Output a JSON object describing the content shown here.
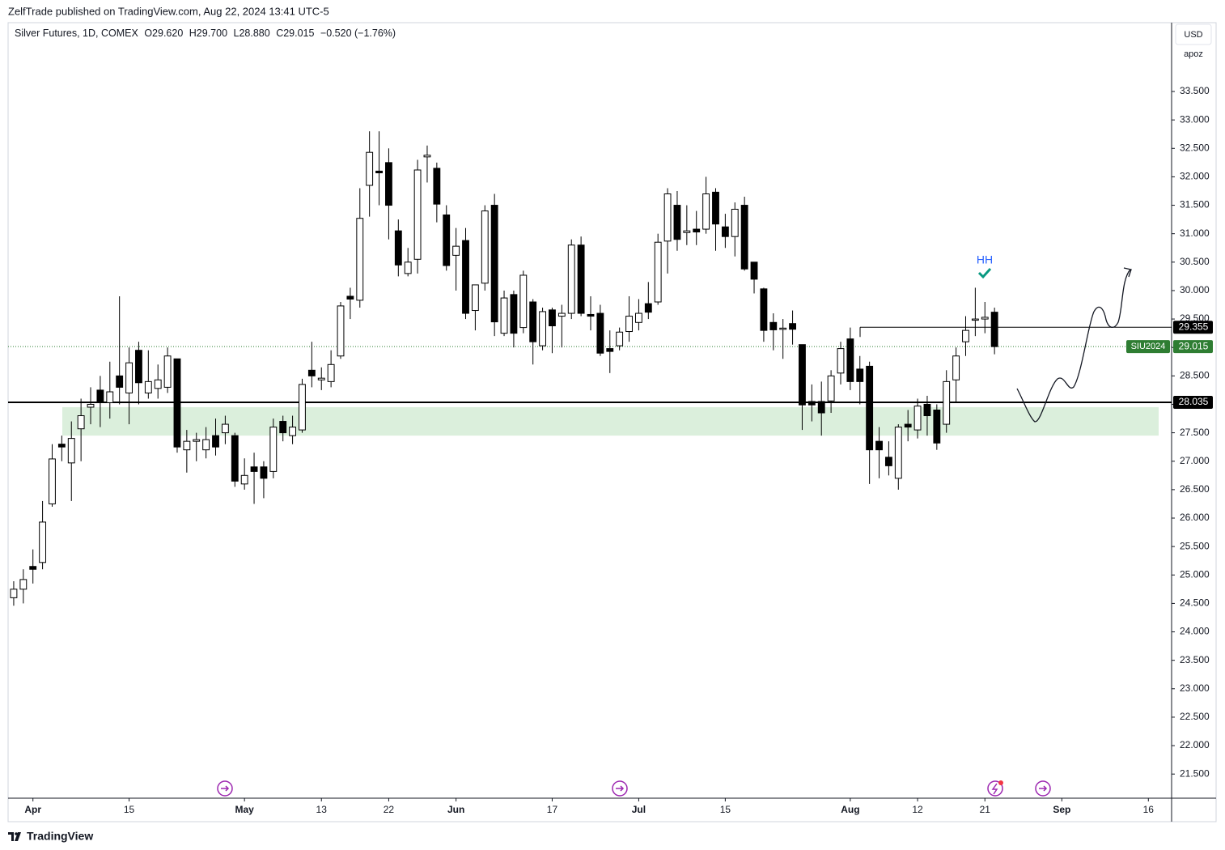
{
  "header": {
    "publisher": "ZelfTrade published on TradingView.com, Aug 22, 2024 13:41 UTC-5"
  },
  "chart_data": {
    "type": "candlestick",
    "title": "Silver Futures, 1D, COMEX",
    "ohlc_legend": [
      "O29.620",
      "H29.700",
      "L28.880",
      "C29.015",
      "−0.520 (−1.76%)"
    ],
    "currency": "USD",
    "scale_label": "apoz",
    "up_color": "#ffffff",
    "down_color": "#000000",
    "categories": [
      null,
      null,
      "Apr",
      null,
      null,
      null,
      null,
      null,
      null,
      null,
      null,
      null,
      "15",
      null,
      null,
      null,
      null,
      null,
      null,
      null,
      null,
      null,
      null,
      null,
      "May",
      null,
      null,
      null,
      null,
      null,
      null,
      null,
      "13",
      null,
      null,
      null,
      null,
      null,
      null,
      "22",
      null,
      null,
      null,
      null,
      null,
      null,
      "Jun",
      null,
      null,
      null,
      null,
      null,
      null,
      null,
      null,
      null,
      "17",
      null,
      null,
      null,
      null,
      null,
      null,
      null,
      null,
      "Jul",
      null,
      null,
      null,
      null,
      null,
      null,
      null,
      null,
      "15",
      null,
      null,
      null,
      null,
      null,
      null,
      null,
      null,
      null,
      null,
      null,
      null,
      "Aug",
      null,
      null,
      null,
      null,
      null,
      null,
      "12",
      null,
      null,
      null,
      null,
      null,
      null,
      "21",
      null,
      null,
      null,
      null,
      null,
      null,
      null,
      "Sep",
      null,
      null,
      null,
      null,
      null,
      null,
      null,
      null,
      "16",
      null,
      null
    ],
    "open": [
      24.6,
      24.75,
      25.15,
      25.22,
      26.25,
      27.3,
      26.97,
      27.57,
      27.95,
      28.25,
      28.03,
      28.5,
      28.2,
      28.95,
      28.2,
      28.28,
      28.3,
      28.8,
      27.2,
      27.35,
      27.2,
      27.45,
      27.5,
      27.45,
      26.6,
      26.9,
      26.9,
      26.82,
      27.7,
      27.45,
      27.55,
      28.6,
      28.43,
      28.4,
      28.85,
      29.9,
      29.83,
      31.85,
      32.1,
      32.25,
      31.05,
      30.3,
      30.55,
      32.35,
      32.15,
      31.33,
      30.62,
      30.88,
      29.65,
      30.13,
      31.5,
      29.25,
      29.93,
      29.35,
      29.8,
      29.03,
      29.66,
      29.55,
      29.6,
      30.8,
      29.58,
      29.6,
      28.98,
      29.03,
      29.28,
      29.44,
      29.77,
      29.8,
      30.87,
      31.5,
      31.02,
      31.08,
      31.08,
      31.73,
      31.12,
      30.95,
      31.5,
      30.5,
      30.03,
      29.44,
      29.32,
      29.42,
      29.05,
      28.05,
      28.05,
      28.06,
      28.55,
      29.15,
      28.62,
      28.67,
      27.35,
      27.07,
      26.7,
      27.65,
      27.55,
      28.0,
      27.9,
      27.65,
      28.43,
      29.1,
      29.48,
      29.5,
      29.62,
      null,
      null,
      null,
      null,
      null,
      null,
      null,
      null,
      null,
      null,
      null,
      null,
      null,
      null,
      null,
      null,
      null,
      null
    ],
    "high": [
      24.89,
      25.1,
      25.45,
      26.3,
      27.3,
      27.45,
      27.7,
      28.1,
      28.3,
      28.5,
      28.75,
      29.9,
      29.0,
      29.1,
      28.95,
      28.7,
      29.0,
      28.8,
      27.55,
      27.5,
      27.6,
      27.75,
      27.8,
      27.5,
      27.05,
      27.15,
      27.0,
      27.75,
      27.8,
      27.8,
      28.45,
      29.1,
      28.65,
      28.95,
      29.8,
      30.05,
      31.8,
      32.8,
      32.8,
      32.5,
      31.25,
      30.75,
      32.3,
      32.55,
      32.25,
      31.5,
      31.1,
      31.1,
      30.1,
      31.5,
      31.7,
      30.0,
      30.0,
      30.35,
      29.85,
      29.7,
      29.7,
      29.75,
      30.9,
      30.95,
      29.9,
      29.75,
      29.3,
      29.35,
      29.9,
      29.85,
      30.15,
      31.0,
      31.8,
      31.75,
      31.5,
      31.4,
      32.0,
      31.8,
      31.35,
      31.55,
      31.65,
      30.5,
      30.05,
      29.6,
      29.5,
      29.65,
      29.05,
      28.35,
      28.4,
      28.6,
      29.1,
      29.35,
      28.85,
      28.75,
      27.6,
      27.35,
      27.65,
      27.9,
      28.1,
      28.15,
      28.0,
      28.6,
      29.0,
      29.55,
      30.05,
      29.8,
      29.7,
      null,
      null,
      null,
      null,
      null,
      null,
      null,
      null,
      null,
      null,
      null,
      null,
      null,
      null,
      null,
      null,
      null,
      null
    ],
    "low": [
      24.46,
      24.5,
      24.85,
      25.1,
      26.2,
      27.0,
      26.3,
      27.0,
      27.65,
      27.6,
      27.75,
      28.0,
      27.65,
      28.0,
      28.1,
      28.1,
      28.2,
      27.15,
      26.8,
      27.0,
      27.05,
      27.1,
      27.3,
      26.55,
      26.5,
      26.25,
      26.35,
      26.7,
      27.35,
      27.3,
      27.5,
      28.3,
      28.25,
      28.3,
      28.8,
      29.5,
      29.7,
      31.3,
      31.5,
      30.9,
      30.25,
      30.25,
      30.3,
      31.9,
      31.2,
      30.35,
      30.0,
      29.5,
      29.3,
      30.0,
      29.2,
      29.2,
      29.0,
      29.25,
      28.7,
      28.95,
      28.9,
      29.0,
      29.5,
      29.55,
      29.3,
      28.85,
      28.55,
      28.95,
      29.1,
      29.3,
      29.5,
      29.75,
      30.3,
      30.7,
      30.8,
      30.8,
      31.0,
      30.7,
      30.75,
      30.6,
      30.35,
      29.95,
      29.1,
      28.95,
      28.8,
      29.05,
      27.55,
      27.7,
      27.45,
      27.85,
      28.35,
      28.25,
      28.0,
      26.6,
      26.7,
      26.75,
      26.5,
      27.35,
      27.4,
      27.45,
      27.2,
      27.5,
      28.05,
      28.85,
      29.2,
      29.25,
      28.88,
      null,
      null,
      null,
      null,
      null,
      null,
      null,
      null,
      null,
      null,
      null,
      null,
      null,
      null,
      null,
      null,
      null,
      null
    ],
    "close": [
      24.75,
      24.92,
      25.1,
      25.93,
      27.04,
      27.25,
      27.4,
      27.8,
      28.0,
      28.03,
      28.22,
      28.3,
      28.73,
      28.38,
      28.4,
      28.43,
      28.85,
      27.25,
      27.35,
      27.38,
      27.38,
      27.25,
      27.65,
      26.65,
      26.75,
      26.82,
      26.7,
      27.6,
      27.5,
      27.6,
      28.35,
      28.5,
      28.46,
      28.7,
      29.73,
      29.85,
      31.27,
      32.43,
      32.07,
      31.5,
      30.45,
      30.5,
      32.12,
      32.38,
      31.52,
      30.44,
      30.78,
      29.6,
      30.1,
      31.4,
      29.45,
      29.87,
      29.25,
      30.27,
      29.1,
      29.63,
      29.38,
      29.6,
      30.8,
      29.6,
      29.55,
      28.9,
      28.93,
      29.27,
      29.55,
      29.6,
      29.62,
      30.85,
      31.7,
      30.9,
      31.05,
      31.03,
      31.7,
      31.17,
      30.95,
      31.43,
      30.38,
      30.2,
      29.3,
      29.31,
      29.34,
      29.32,
      27.99,
      27.99,
      27.85,
      28.5,
      28.98,
      28.4,
      28.4,
      27.2,
      27.2,
      26.92,
      27.6,
      27.6,
      27.97,
      27.8,
      27.32,
      28.4,
      28.85,
      29.3,
      29.5,
      29.53,
      29.015,
      null,
      null,
      null,
      null,
      null,
      null,
      null,
      null,
      null,
      null,
      null,
      null,
      null,
      null,
      null,
      null,
      null,
      null
    ],
    "ylim": [
      21.09,
      34.71
    ],
    "yticks": [
      {
        "value": 21.5,
        "label": "21.500"
      },
      {
        "value": 22,
        "label": "22.000"
      },
      {
        "value": 22.5,
        "label": "22.500"
      },
      {
        "value": 23,
        "label": "23.000"
      },
      {
        "value": 23.5,
        "label": "23.500"
      },
      {
        "value": 24,
        "label": "24.000"
      },
      {
        "value": 24.5,
        "label": "24.500"
      },
      {
        "value": 25,
        "label": "25.000"
      },
      {
        "value": 25.5,
        "label": "25.500"
      },
      {
        "value": 26,
        "label": "26.000"
      },
      {
        "value": 26.5,
        "label": "26.500"
      },
      {
        "value": 27,
        "label": "27.000"
      },
      {
        "value": 27.5,
        "label": "27.500"
      },
      {
        "value": 28,
        "label": "28.000"
      },
      {
        "value": 28.5,
        "label": "28.500"
      },
      {
        "value": 29,
        "label": "29.000"
      },
      {
        "value": 29.5,
        "label": "29.500"
      },
      {
        "value": 30,
        "label": "30.000"
      },
      {
        "value": 30.5,
        "label": "30.500"
      },
      {
        "value": 31,
        "label": "31.000"
      },
      {
        "value": 31.5,
        "label": "31.500"
      },
      {
        "value": 32,
        "label": "32.000"
      },
      {
        "value": 32.5,
        "label": "32.500"
      },
      {
        "value": 33,
        "label": "33.000"
      },
      {
        "value": 33.5,
        "label": "33.500"
      }
    ],
    "zone": [
      27.45,
      27.95
    ],
    "levels": [
      29.355,
      28.035
    ],
    "last_price": 29.015,
    "symbol_tag": "SIU2024",
    "annotation": "HH"
  },
  "footer": {
    "brand": "TradingView"
  }
}
